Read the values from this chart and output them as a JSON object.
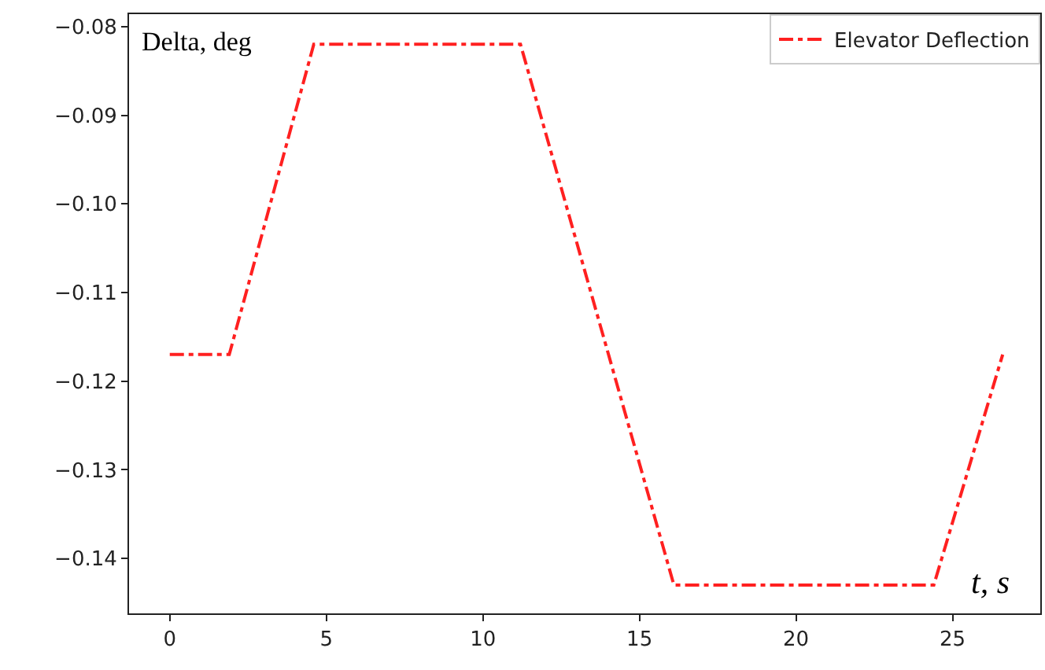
{
  "chart_data": {
    "type": "line",
    "xlabel": "t, s",
    "ylabel": "Delta, deg",
    "x": [
      0,
      1.9,
      4.6,
      11.2,
      16.1,
      24.4,
      26.6
    ],
    "series": [
      {
        "name": "Elevator Deflection",
        "color": "#ff2020",
        "values": [
          -0.117,
          -0.117,
          -0.082,
          -0.082,
          -0.143,
          -0.143,
          -0.117
        ]
      }
    ],
    "xlim": [
      -1.3,
      27.8
    ],
    "xticks": [
      0,
      5,
      10,
      15,
      20,
      25
    ],
    "ylim": [
      -0.1462,
      -0.0786
    ],
    "yticks": [
      {
        "value": -0.08,
        "label": "−0.08"
      },
      {
        "value": -0.09,
        "label": "−0.09"
      },
      {
        "value": -0.1,
        "label": "−0.10"
      },
      {
        "value": -0.11,
        "label": "−0.11"
      },
      {
        "value": -0.12,
        "label": "−0.12"
      },
      {
        "value": -0.13,
        "label": "−0.13"
      },
      {
        "value": -0.14,
        "label": "−0.14"
      }
    ],
    "grid": false,
    "legend": "top right",
    "line_style": "dashdot",
    "marker": "none"
  }
}
